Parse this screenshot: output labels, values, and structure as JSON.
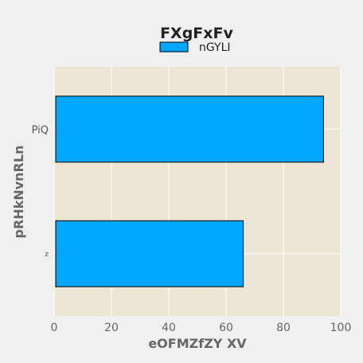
{
  "chart_data": {
    "type": "bar",
    "orientation": "horizontal",
    "title": "FXgFxFv",
    "xlabel": "eOFMZfZY XV",
    "ylabel": "pRHkNvnRLn",
    "categories": [
      "PiQ",
      "z"
    ],
    "series": [
      {
        "name": "nGYLI",
        "values": [
          94,
          66
        ]
      }
    ],
    "xlim": [
      0,
      100
    ],
    "xticks": [
      "0",
      "20",
      "40",
      "60",
      "80",
      "100"
    ],
    "grid": true,
    "legend": "top-center"
  },
  "colors": {
    "figure_background": "#f0f0f0",
    "plot_background": "#ede6d5",
    "bar_fill": "#00a6ff",
    "bar_edge": "#000000",
    "grid": "#ffffff"
  }
}
